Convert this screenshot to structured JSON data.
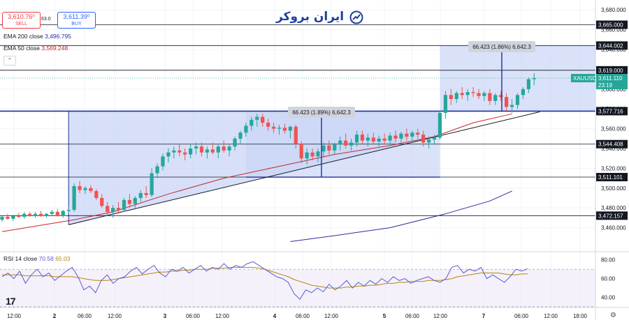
{
  "quote": {
    "sell_price": "3,610.76⁰",
    "sell_label": "SELL",
    "spread": "63.0",
    "buy_price": "3,611.39⁰",
    "buy_label": "BUY"
  },
  "logo_text": "ایران بروکر",
  "indicators": {
    "ema200_label": "EMA 200 close",
    "ema200_value": "3,496.795",
    "ema50_label": "EMA 50 close",
    "ema50_value": "3,569.248",
    "rsi_label": "RSI 14 close",
    "rsi_value": "70.58",
    "rsi_ma_value": "65.03"
  },
  "watermark": "17",
  "colors": {
    "bull": "#26a69a",
    "bear": "#ef5350",
    "ema200": "#2a2e9c",
    "ema50": "#c62828",
    "box_fill": "#c9d6f5",
    "box_edge": "#1e2fa0",
    "rsi": "#5b5bd6",
    "rsi_ma": "#b8860b",
    "price_tag": "#26a69a"
  },
  "chart_data": {
    "type": "candlestick",
    "symbol": "XAUUSD",
    "price_axis": {
      "min": 3440,
      "max": 3690,
      "ticks": [
        3680,
        3660,
        3640,
        3620,
        3600,
        3580,
        3560,
        3540,
        3520,
        3500,
        3480,
        3460
      ]
    },
    "time_axis": {
      "labels": [
        "12:00",
        "2",
        "06:00",
        "12:00",
        "3",
        "06:00",
        "12:00",
        "4",
        "06:00",
        "12:00",
        "5",
        "06:00",
        "12:00",
        "7",
        "06:00",
        "12:00",
        "18:00"
      ],
      "bold_labels": [
        "2",
        "3",
        "4",
        "5",
        "7"
      ]
    },
    "horizontal_levels": [
      {
        "value": 3665.0,
        "label": "3,665.000"
      },
      {
        "value": 3644.002,
        "label": "3,644.002"
      },
      {
        "value": 3619.0,
        "label": "3,619.000"
      },
      {
        "value": 3577.716,
        "label": "3,577.716"
      },
      {
        "value": 3544.408,
        "label": "3,544.408"
      },
      {
        "value": 3511.101,
        "label": "3,511.101"
      },
      {
        "value": 3472.157,
        "label": "3,472.157"
      }
    ],
    "current_price": {
      "symbol": "XAUUSD",
      "value": "3,611.110",
      "countdown": "23:19"
    },
    "measure_labels": [
      {
        "text": "66.423 (1.89%) 6,642.3",
        "target": "first_box"
      },
      {
        "text": "66.423 (1.86%) 6,642.3",
        "target": "second_box"
      }
    ],
    "candles": [
      [
        3468,
        3472,
        3466,
        3471
      ],
      [
        3471,
        3474,
        3468,
        3469
      ],
      [
        3469,
        3473,
        3467,
        3472
      ],
      [
        3472,
        3475,
        3470,
        3471
      ],
      [
        3471,
        3476,
        3469,
        3474
      ],
      [
        3474,
        3476,
        3471,
        3472
      ],
      [
        3472,
        3476,
        3470,
        3474
      ],
      [
        3474,
        3477,
        3471,
        3472
      ],
      [
        3472,
        3475,
        3470,
        3474
      ],
      [
        3474,
        3478,
        3472,
        3476
      ],
      [
        3476,
        3479,
        3471,
        3472
      ],
      [
        3472,
        3478,
        3470,
        3477
      ],
      [
        3477,
        3482,
        3474,
        3478
      ],
      [
        3478,
        3505,
        3476,
        3502
      ],
      [
        3502,
        3507,
        3495,
        3498
      ],
      [
        3498,
        3502,
        3494,
        3500
      ],
      [
        3500,
        3503,
        3495,
        3497
      ],
      [
        3497,
        3499,
        3488,
        3490
      ],
      [
        3490,
        3494,
        3480,
        3482
      ],
      [
        3482,
        3486,
        3472,
        3476
      ],
      [
        3476,
        3483,
        3470,
        3480
      ],
      [
        3480,
        3486,
        3474,
        3478
      ],
      [
        3478,
        3490,
        3476,
        3488
      ],
      [
        3488,
        3494,
        3480,
        3484
      ],
      [
        3484,
        3492,
        3480,
        3490
      ],
      [
        3490,
        3498,
        3486,
        3495
      ],
      [
        3495,
        3502,
        3490,
        3493
      ],
      [
        3493,
        3520,
        3491,
        3515
      ],
      [
        3515,
        3525,
        3510,
        3522
      ],
      [
        3522,
        3535,
        3518,
        3532
      ],
      [
        3532,
        3540,
        3526,
        3536
      ],
      [
        3536,
        3542,
        3530,
        3538
      ],
      [
        3538,
        3545,
        3532,
        3536
      ],
      [
        3536,
        3540,
        3528,
        3534
      ],
      [
        3534,
        3544,
        3530,
        3540
      ],
      [
        3540,
        3546,
        3534,
        3542
      ],
      [
        3542,
        3546,
        3532,
        3536
      ],
      [
        3536,
        3542,
        3530,
        3539
      ],
      [
        3539,
        3546,
        3534,
        3536
      ],
      [
        3536,
        3544,
        3530,
        3542
      ],
      [
        3542,
        3548,
        3536,
        3538
      ],
      [
        3538,
        3545,
        3532,
        3542
      ],
      [
        3542,
        3552,
        3538,
        3550
      ],
      [
        3550,
        3558,
        3545,
        3556
      ],
      [
        3556,
        3566,
        3552,
        3563
      ],
      [
        3563,
        3572,
        3558,
        3569
      ],
      [
        3569,
        3575,
        3562,
        3572
      ],
      [
        3572,
        3575,
        3562,
        3566
      ],
      [
        3566,
        3570,
        3558,
        3562
      ],
      [
        3562,
        3566,
        3556,
        3560
      ],
      [
        3560,
        3564,
        3554,
        3561
      ],
      [
        3561,
        3565,
        3555,
        3558
      ],
      [
        3558,
        3563,
        3550,
        3562
      ],
      [
        3562,
        3564,
        3540,
        3545
      ],
      [
        3545,
        3547,
        3525,
        3530
      ],
      [
        3530,
        3540,
        3524,
        3536
      ],
      [
        3536,
        3540,
        3528,
        3532
      ],
      [
        3532,
        3540,
        3526,
        3537
      ],
      [
        3537,
        3546,
        3532,
        3543
      ],
      [
        3543,
        3548,
        3534,
        3538
      ],
      [
        3538,
        3546,
        3534,
        3544
      ],
      [
        3544,
        3552,
        3538,
        3548
      ],
      [
        3548,
        3555,
        3540,
        3543
      ],
      [
        3543,
        3550,
        3538,
        3546
      ],
      [
        3546,
        3558,
        3542,
        3554
      ],
      [
        3554,
        3558,
        3544,
        3548
      ],
      [
        3548,
        3555,
        3542,
        3551
      ],
      [
        3551,
        3556,
        3544,
        3547
      ],
      [
        3547,
        3553,
        3542,
        3550
      ],
      [
        3550,
        3555,
        3544,
        3548
      ],
      [
        3548,
        3556,
        3543,
        3553
      ],
      [
        3553,
        3558,
        3546,
        3550
      ],
      [
        3550,
        3557,
        3546,
        3555
      ],
      [
        3555,
        3560,
        3548,
        3552
      ],
      [
        3552,
        3558,
        3548,
        3556
      ],
      [
        3556,
        3560,
        3550,
        3554
      ],
      [
        3554,
        3558,
        3542,
        3546
      ],
      [
        3546,
        3552,
        3540,
        3549
      ],
      [
        3549,
        3554,
        3544,
        3551
      ],
      [
        3551,
        3578,
        3549,
        3576
      ],
      [
        3576,
        3598,
        3570,
        3594
      ],
      [
        3594,
        3600,
        3584,
        3590
      ],
      [
        3590,
        3598,
        3586,
        3596
      ],
      [
        3596,
        3602,
        3590,
        3594
      ],
      [
        3594,
        3600,
        3588,
        3597
      ],
      [
        3597,
        3602,
        3592,
        3596
      ],
      [
        3596,
        3600,
        3590,
        3593
      ],
      [
        3593,
        3598,
        3588,
        3596
      ],
      [
        3596,
        3600,
        3584,
        3588
      ],
      [
        3588,
        3596,
        3584,
        3594
      ],
      [
        3594,
        3598,
        3588,
        3592
      ],
      [
        3592,
        3596,
        3578,
        3582
      ],
      [
        3582,
        3590,
        3576,
        3584
      ],
      [
        3584,
        3596,
        3580,
        3594
      ],
      [
        3594,
        3602,
        3590,
        3600
      ],
      [
        3600,
        3612,
        3596,
        3610
      ],
      [
        3610,
        3616,
        3604,
        3611
      ]
    ],
    "ema50": [
      [
        0,
        3456
      ],
      [
        13,
        3468
      ],
      [
        20,
        3476
      ],
      [
        30,
        3494
      ],
      [
        40,
        3510
      ],
      [
        50,
        3522
      ],
      [
        60,
        3534
      ],
      [
        70,
        3543
      ],
      [
        78,
        3552
      ],
      [
        85,
        3566
      ],
      [
        92,
        3575
      ]
    ],
    "ema200": [
      [
        52,
        3446
      ],
      [
        60,
        3452
      ],
      [
        70,
        3460
      ],
      [
        80,
        3474
      ],
      [
        88,
        3487
      ],
      [
        92,
        3497
      ]
    ],
    "trendline": {
      "from": [
        12,
        3463
      ],
      "to": [
        97,
        3577
      ]
    },
    "boxes": [
      {
        "from_index": 12,
        "to_index": 79,
        "top": 3577.716,
        "bottom": 3463
      },
      {
        "from_index": 44,
        "to_index": 79,
        "top": 3577.716,
        "bottom": 3511.101
      },
      {
        "from_index": 79,
        "to_index": 110,
        "top": 3644.002,
        "bottom": 3577.716
      }
    ],
    "rsi": {
      "min": 30,
      "max": 85,
      "ticks": [
        80.0,
        60.0,
        40.0
      ],
      "levels": [
        70,
        30
      ],
      "values": [
        62,
        66,
        60,
        68,
        55,
        64,
        70,
        62,
        66,
        58,
        63,
        68,
        72,
        62,
        48,
        52,
        45,
        58,
        64,
        55,
        60,
        62,
        68,
        72,
        65,
        70,
        74,
        66,
        62,
        70,
        68,
        72,
        66,
        70,
        74,
        68,
        72,
        70,
        76,
        70,
        74,
        72,
        76,
        78,
        74,
        70,
        66,
        62,
        60,
        56,
        44,
        38,
        48,
        45,
        50,
        46,
        54,
        48,
        52,
        58,
        50,
        56,
        52,
        58,
        54,
        60,
        56,
        62,
        58,
        60,
        55,
        58,
        60,
        62,
        58,
        56,
        60,
        72,
        74,
        66,
        70,
        68,
        72,
        60,
        64,
        60,
        56,
        62,
        70,
        68,
        70.58
      ],
      "ma_values": [
        64,
        64,
        64,
        64,
        63,
        63,
        63,
        63,
        63,
        62,
        62,
        62,
        62,
        61,
        60,
        59,
        58,
        58,
        58,
        59,
        60,
        61,
        62,
        63,
        64,
        65,
        66,
        67,
        67,
        68,
        68,
        69,
        69,
        70,
        70,
        70,
        71,
        71,
        71,
        72,
        72,
        72,
        72,
        72,
        71,
        70,
        68,
        66,
        64,
        62,
        59,
        57,
        55,
        53,
        52,
        51,
        50,
        50,
        50,
        51,
        51,
        52,
        52,
        53,
        53,
        54,
        55,
        55,
        56,
        56,
        57,
        57,
        57,
        58,
        58,
        58,
        59,
        60,
        62,
        63,
        64,
        65,
        66,
        66,
        66,
        66,
        65,
        64,
        64,
        65,
        65.03
      ]
    }
  }
}
